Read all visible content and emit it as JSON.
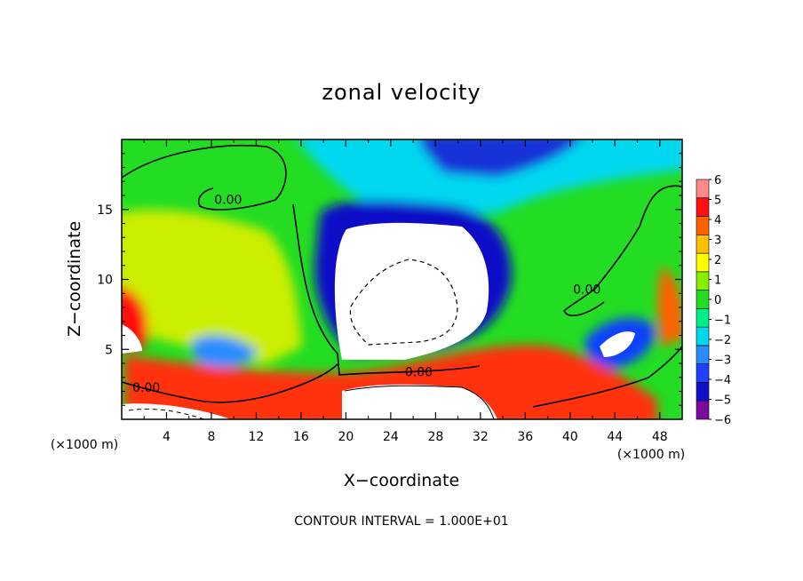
{
  "chart_data": {
    "type": "heatmap",
    "title": "zonal velocity",
    "xlabel": "X−coordinate",
    "ylabel": "Z−coordinate",
    "x_unit": "(×1000 m)",
    "y_unit": "(×1000 m)",
    "xlim": [
      0,
      50
    ],
    "ylim": [
      0,
      20
    ],
    "x_ticks": [
      4,
      8,
      12,
      16,
      20,
      24,
      28,
      32,
      36,
      40,
      44,
      48
    ],
    "y_ticks": [
      5,
      10,
      15
    ],
    "colorbar": {
      "ticks": [
        6,
        5,
        4,
        3,
        2,
        1,
        0,
        -1,
        -2,
        -3,
        -4,
        -5,
        -6
      ],
      "tick_labels": [
        "6",
        "5",
        "4",
        "3",
        "2",
        "1",
        "0",
        "−1",
        "−2",
        "−3",
        "−4",
        "−5",
        "−6"
      ],
      "range": [
        -6,
        6
      ],
      "colors": [
        "#7a0a9e",
        "#1010c8",
        "#2040ff",
        "#2c8cff",
        "#00d8f0",
        "#00ee88",
        "#22dd22",
        "#88ee00",
        "#ffff00",
        "#ffc000",
        "#ff6000",
        "#ff1010",
        "#ff8888"
      ]
    },
    "contour_labels": [
      {
        "x": 9.5,
        "z": 15.7,
        "text": "0.00"
      },
      {
        "x": 2.2,
        "z": 2.3,
        "text": "0.00"
      },
      {
        "x": 26.5,
        "z": 3.4,
        "text": "0.00"
      },
      {
        "x": 41.5,
        "z": 9.3,
        "text": "0.00"
      }
    ],
    "footnote": "CONTOUR INTERVAL = 1.000E+01",
    "grid": false,
    "legend": "colorbar-right"
  }
}
